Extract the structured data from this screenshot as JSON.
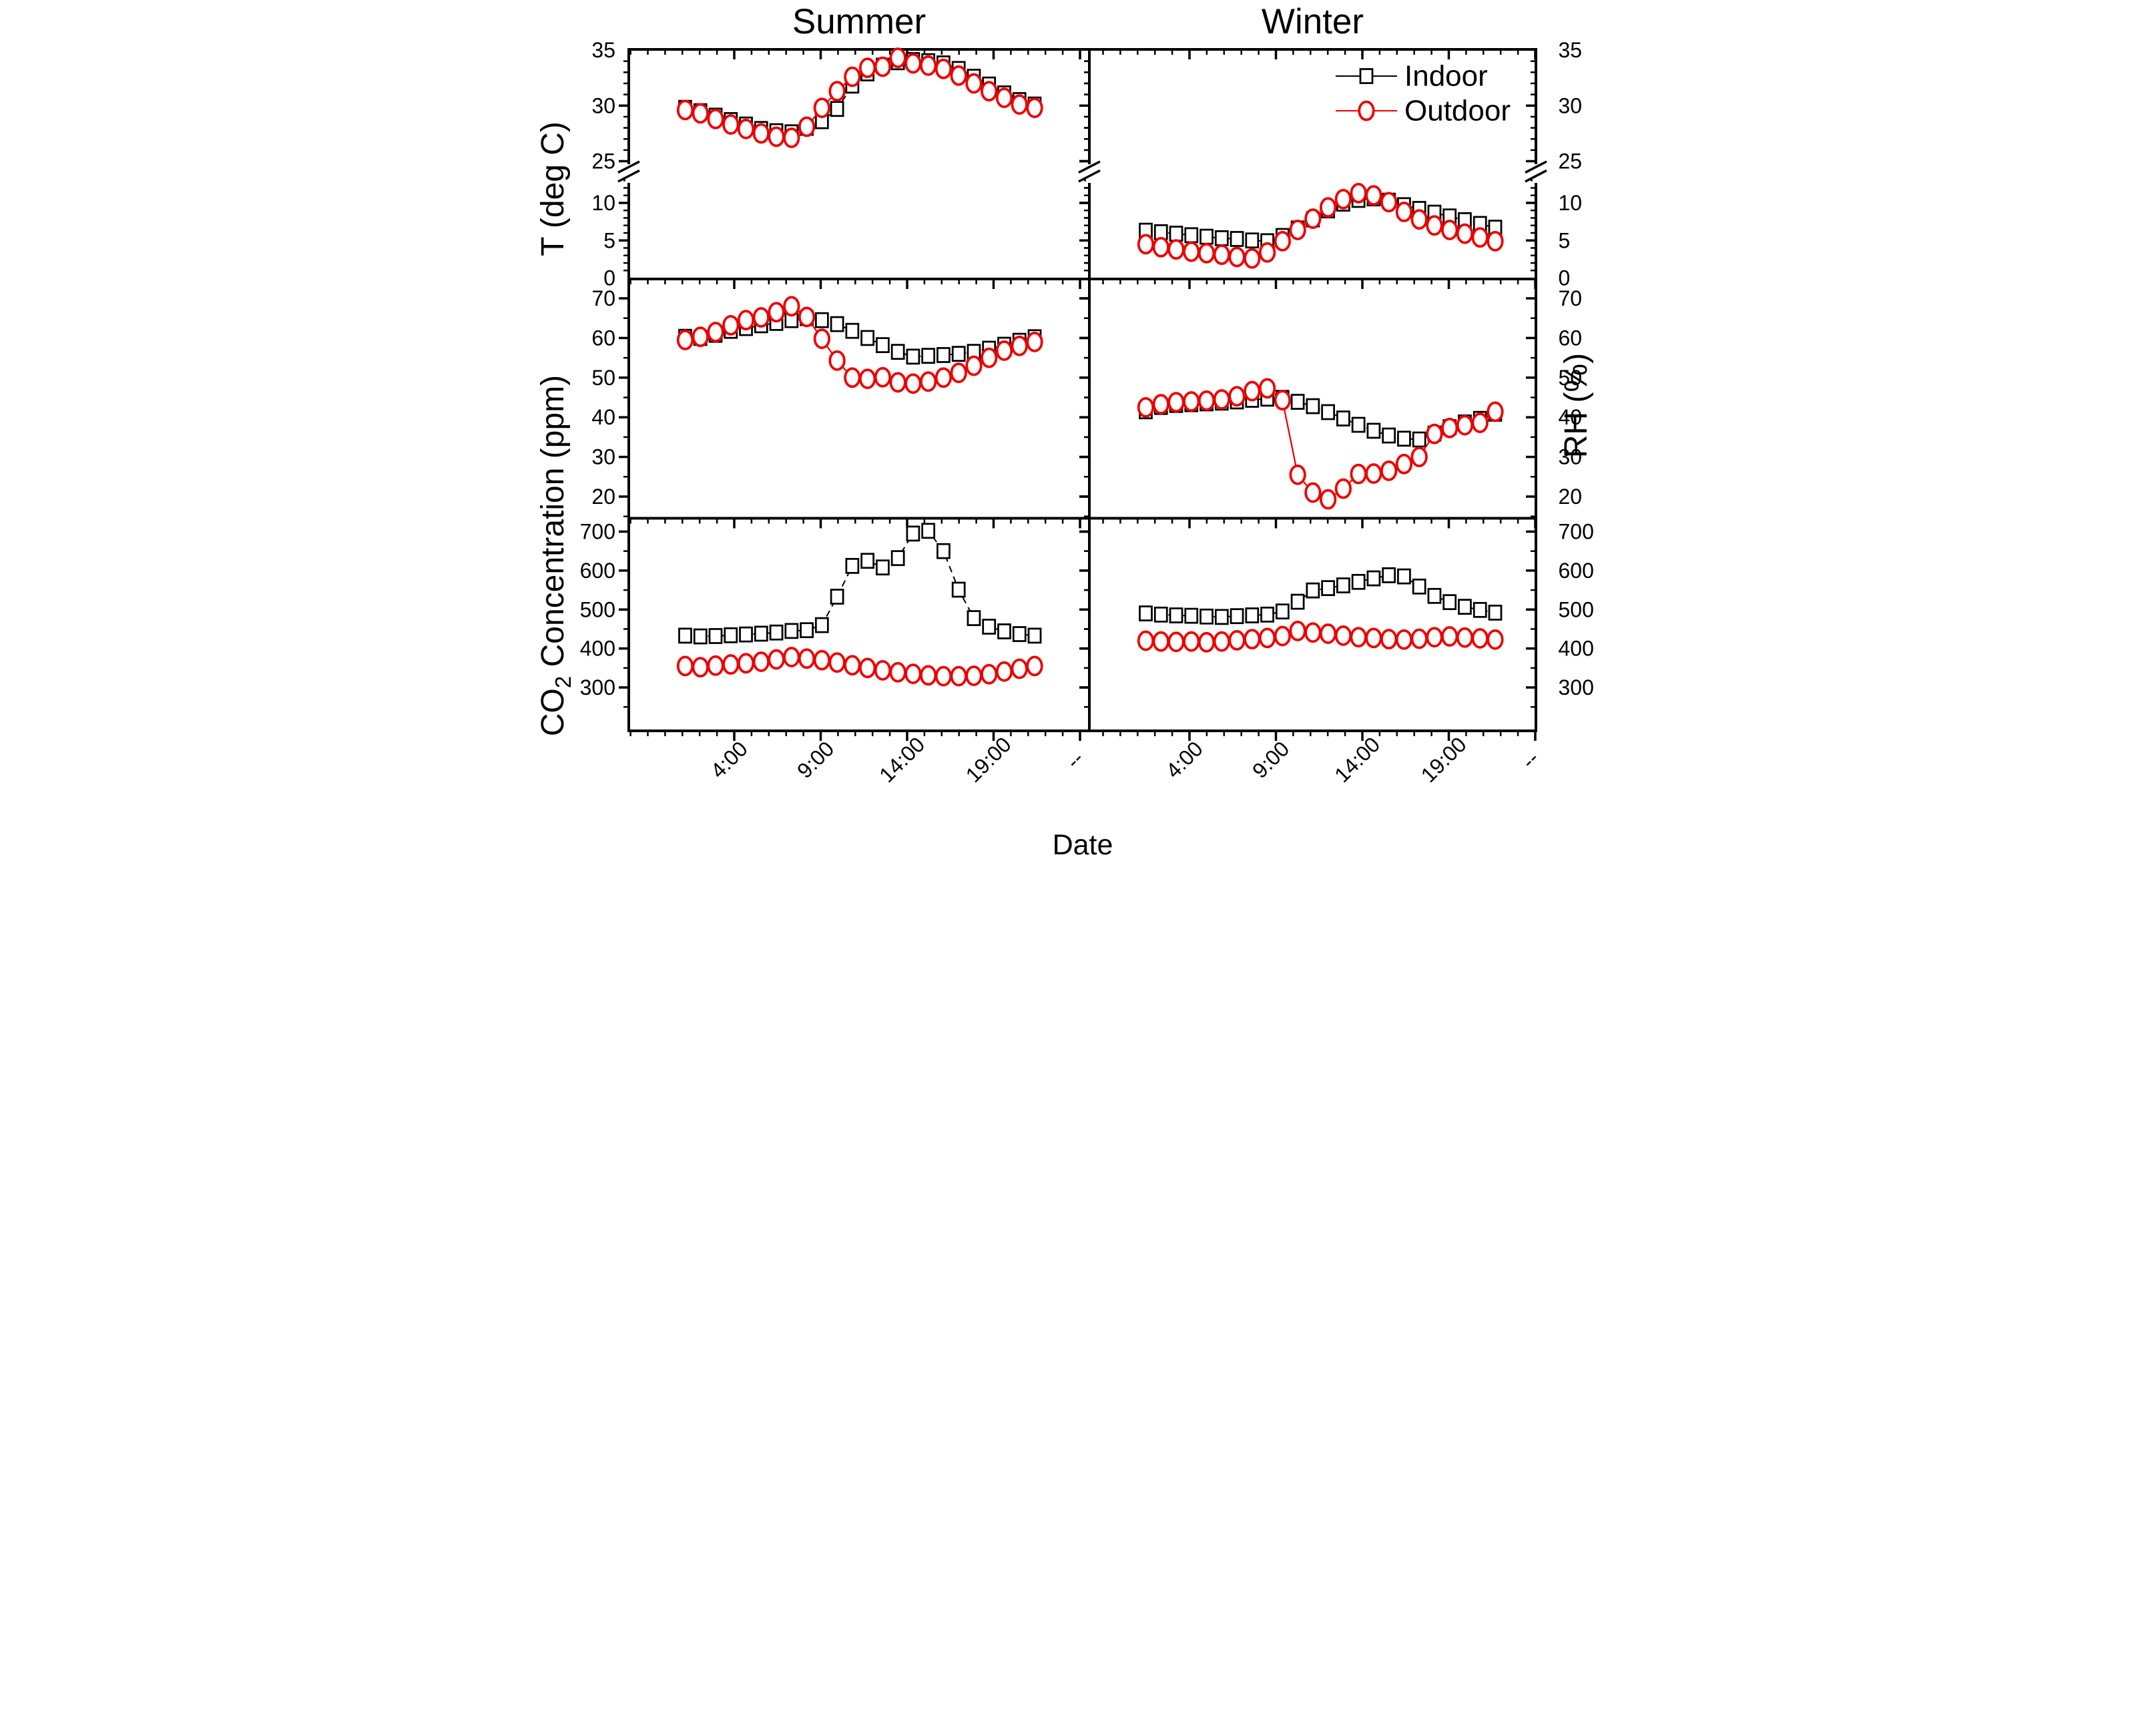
{
  "figure": {
    "column_titles": [
      "Summer",
      "Winter"
    ],
    "x_axis": {
      "title": "Date",
      "tick_labels": [
        "4:00",
        "9:00",
        "14:00",
        "19:00",
        "--"
      ],
      "tick_hours": [
        4,
        9,
        14,
        19,
        24
      ]
    },
    "legend": {
      "items": [
        {
          "label": "Indoor",
          "marker": "open-square",
          "color": "#000000"
        },
        {
          "label": "Outdoor",
          "marker": "open-circle",
          "color": "#ee0000"
        }
      ]
    },
    "colors": {
      "indoor": "#000000",
      "outdoor": "#ee0000",
      "background": "#ffffff"
    }
  },
  "chart_data": {
    "type": "line",
    "grid": false,
    "legend_position": "top-right-of-winter-temperature-panel",
    "rows": [
      {
        "id": "temperature",
        "ylabel": "T (deg C)",
        "axis": {
          "broken": true,
          "upper_range": [
            25,
            35
          ],
          "lower_range": [
            0,
            13.5
          ],
          "upper_ticks": [
            25,
            30,
            35
          ],
          "lower_ticks": [
            0,
            5,
            10
          ]
        },
        "panels": [
          {
            "column": "Summer",
            "series": [
              {
                "name": "Indoor",
                "values": [
                  29.8,
                  29.5,
                  29.1,
                  28.7,
                  28.3,
                  27.9,
                  27.7,
                  27.6,
                  28.0,
                  28.6,
                  29.7,
                  31.8,
                  32.9,
                  33.6,
                  33.9,
                  34.1,
                  34.0,
                  33.8,
                  33.3,
                  32.6,
                  31.9,
                  31.1,
                  30.5,
                  30.1
                ]
              },
              {
                "name": "Outdoor",
                "values": [
                  29.6,
                  29.3,
                  28.8,
                  28.3,
                  27.9,
                  27.5,
                  27.2,
                  27.1,
                  28.1,
                  29.8,
                  31.3,
                  32.6,
                  33.4,
                  33.5,
                  34.3,
                  33.8,
                  33.6,
                  33.3,
                  32.7,
                  32.0,
                  31.3,
                  30.7,
                  30.1,
                  29.8
                ]
              }
            ]
          },
          {
            "column": "Winter",
            "series": [
              {
                "name": "Indoor",
                "values": [
                  6.3,
                  6.1,
                  5.9,
                  5.7,
                  5.5,
                  5.3,
                  5.2,
                  5.0,
                  4.9,
                  5.6,
                  6.6,
                  7.8,
                  9.0,
                  9.9,
                  10.4,
                  10.6,
                  10.3,
                  9.7,
                  9.2,
                  8.7,
                  8.2,
                  7.7,
                  7.2,
                  6.7
                ]
              },
              {
                "name": "Outdoor",
                "values": [
                  4.5,
                  4.1,
                  3.8,
                  3.5,
                  3.3,
                  3.1,
                  2.8,
                  2.6,
                  3.4,
                  4.9,
                  6.4,
                  7.9,
                  9.4,
                  10.5,
                  11.3,
                  11.0,
                  10.1,
                  8.8,
                  7.8,
                  7.0,
                  6.4,
                  5.9,
                  5.4,
                  4.9
                ]
              }
            ]
          }
        ]
      },
      {
        "id": "rh",
        "ylabel": "RH (%)",
        "axis": {
          "broken": false,
          "range": [
            14,
            76
          ],
          "ticks": [
            20,
            30,
            40,
            50,
            60,
            70
          ]
        },
        "panels": [
          {
            "column": "Summer",
            "series": [
              {
                "name": "Indoor",
                "values": [
                  60.3,
                  60.0,
                  60.8,
                  61.8,
                  62.5,
                  63.2,
                  63.8,
                  64.5,
                  65.0,
                  64.5,
                  63.5,
                  61.8,
                  60.0,
                  58.2,
                  56.5,
                  55.3,
                  55.5,
                  55.7,
                  56.0,
                  56.5,
                  57.3,
                  58.3,
                  59.3,
                  60.2
                ]
              },
              {
                "name": "Outdoor",
                "values": [
                  59.5,
                  60.3,
                  61.5,
                  63.2,
                  64.5,
                  65.2,
                  66.5,
                  68.0,
                  65.3,
                  59.8,
                  54.3,
                  50.0,
                  49.7,
                  50.1,
                  48.8,
                  48.5,
                  49.0,
                  50.0,
                  51.2,
                  53.0,
                  55.0,
                  56.8,
                  58.0,
                  59.0
                ]
              }
            ]
          },
          {
            "column": "Winter",
            "series": [
              {
                "name": "Indoor",
                "values": [
                  41.5,
                  42.6,
                  43.1,
                  43.3,
                  43.5,
                  43.7,
                  44.0,
                  44.4,
                  44.7,
                  44.9,
                  43.9,
                  42.8,
                  41.3,
                  39.7,
                  38.1,
                  36.6,
                  35.4,
                  34.6,
                  34.4,
                  35.9,
                  37.5,
                  38.7,
                  39.6,
                  40.9
                ]
              },
              {
                "name": "Outdoor",
                "values": [
                  42.5,
                  43.3,
                  43.8,
                  44.0,
                  44.2,
                  44.5,
                  45.3,
                  46.6,
                  47.3,
                  44.3,
                  25.5,
                  21.0,
                  19.3,
                  22.0,
                  25.7,
                  25.8,
                  26.5,
                  28.2,
                  30.0,
                  35.8,
                  37.3,
                  38.0,
                  38.6,
                  41.4
                ]
              }
            ]
          }
        ]
      },
      {
        "id": "co2",
        "ylabel": "CO2 Concentration (ppm)",
        "ylabel_parts": {
          "prefix": "CO",
          "subscript": "2",
          "suffix": " Concentration (ppm)"
        },
        "axis": {
          "broken": false,
          "range": [
            190,
            735
          ],
          "ticks": [
            300,
            400,
            500,
            600,
            700
          ]
        },
        "panels": [
          {
            "column": "Summer",
            "series": [
              {
                "name": "Indoor",
                "values": [
                  433,
                  431,
                  432,
                  434,
                  436,
                  438,
                  441,
                  445,
                  447,
                  460,
                  533,
                  612,
                  625,
                  608,
                  632,
                  695,
                  702,
                  650,
                  551,
                  478,
                  456,
                  444,
                  437,
                  433
                ]
              },
              {
                "name": "Outdoor",
                "values": [
                  355,
                  352,
                  356,
                  359,
                  362,
                  366,
                  372,
                  378,
                  374,
                  370,
                  364,
                  357,
                  350,
                  344,
                  339,
                  335,
                  331,
                  329,
                  329,
                  330,
                  334,
                  341,
                  348,
                  355
                ]
              }
            ]
          },
          {
            "column": "Winter",
            "series": [
              {
                "name": "Indoor",
                "values": [
                  490,
                  487,
                  485,
                  484,
                  482,
                  481,
                  483,
                  485,
                  487,
                  495,
                  520,
                  549,
                  555,
                  562,
                  571,
                  580,
                  588,
                  585,
                  559,
                  535,
                  519,
                  507,
                  499,
                  492
                ]
              },
              {
                "name": "Outdoor",
                "values": [
                  420,
                  418,
                  417,
                  418,
                  416,
                  418,
                  421,
                  424,
                  427,
                  432,
                  445,
                  441,
                  438,
                  433,
                  429,
                  427,
                  424,
                  423,
                  425,
                  429,
                  431,
                  428,
                  426,
                  423
                ]
              }
            ]
          }
        ]
      }
    ]
  }
}
